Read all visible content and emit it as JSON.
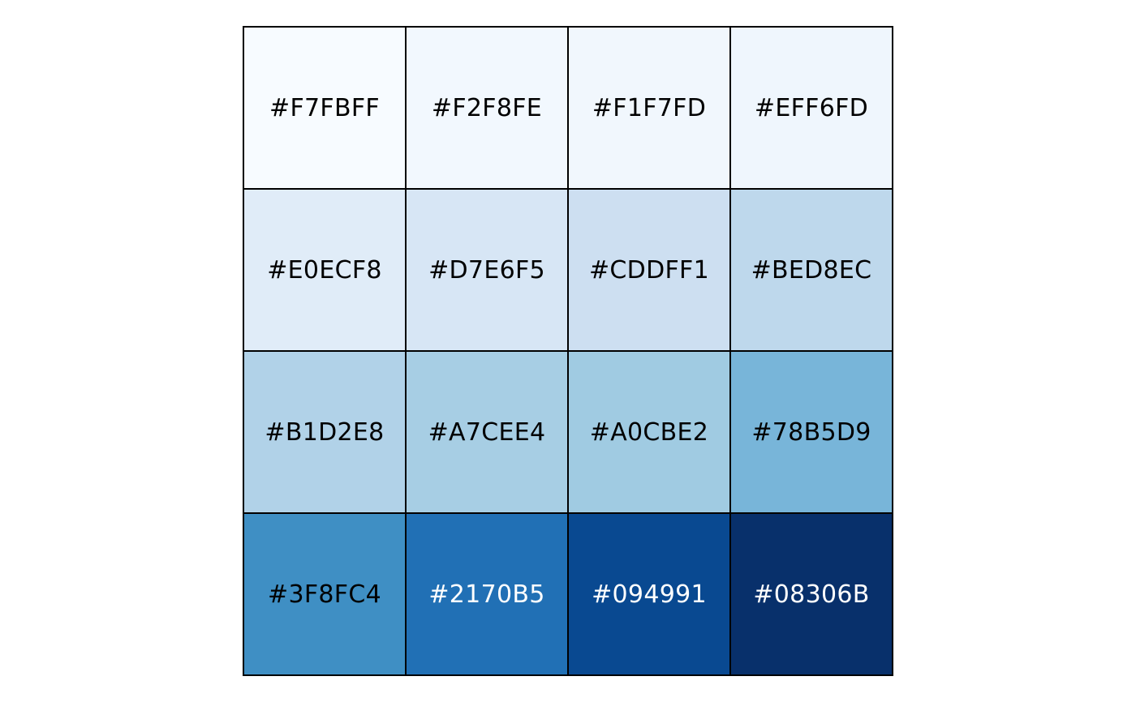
{
  "chart_data": {
    "type": "heatmap",
    "rows": 4,
    "cols": 4,
    "swatches": [
      {
        "label": "#F7FBFF",
        "color": "#F7FBFF",
        "text_color": "#000000"
      },
      {
        "label": "#F2F8FE",
        "color": "#F2F8FE",
        "text_color": "#000000"
      },
      {
        "label": "#F1F7FD",
        "color": "#F1F7FD",
        "text_color": "#000000"
      },
      {
        "label": "#EFF6FD",
        "color": "#EFF6FD",
        "text_color": "#000000"
      },
      {
        "label": "#E0ECF8",
        "color": "#E0ECF8",
        "text_color": "#000000"
      },
      {
        "label": "#D7E6F5",
        "color": "#D7E6F5",
        "text_color": "#000000"
      },
      {
        "label": "#CDDFF1",
        "color": "#CDDFF1",
        "text_color": "#000000"
      },
      {
        "label": "#BED8EC",
        "color": "#BED8EC",
        "text_color": "#000000"
      },
      {
        "label": "#B1D2E8",
        "color": "#B1D2E8",
        "text_color": "#000000"
      },
      {
        "label": "#A7CEE4",
        "color": "#A7CEE4",
        "text_color": "#000000"
      },
      {
        "label": "#A0CBE2",
        "color": "#A0CBE2",
        "text_color": "#000000"
      },
      {
        "label": "#78B5D9",
        "color": "#78B5D9",
        "text_color": "#000000"
      },
      {
        "label": "#3F8FC4",
        "color": "#3F8FC4",
        "text_color": "#000000"
      },
      {
        "label": "#2170B5",
        "color": "#2170B5",
        "text_color": "#FFFFFF"
      },
      {
        "label": "#094991",
        "color": "#094991",
        "text_color": "#FFFFFF"
      },
      {
        "label": "#08306B",
        "color": "#08306B",
        "text_color": "#FFFFFF"
      }
    ]
  }
}
